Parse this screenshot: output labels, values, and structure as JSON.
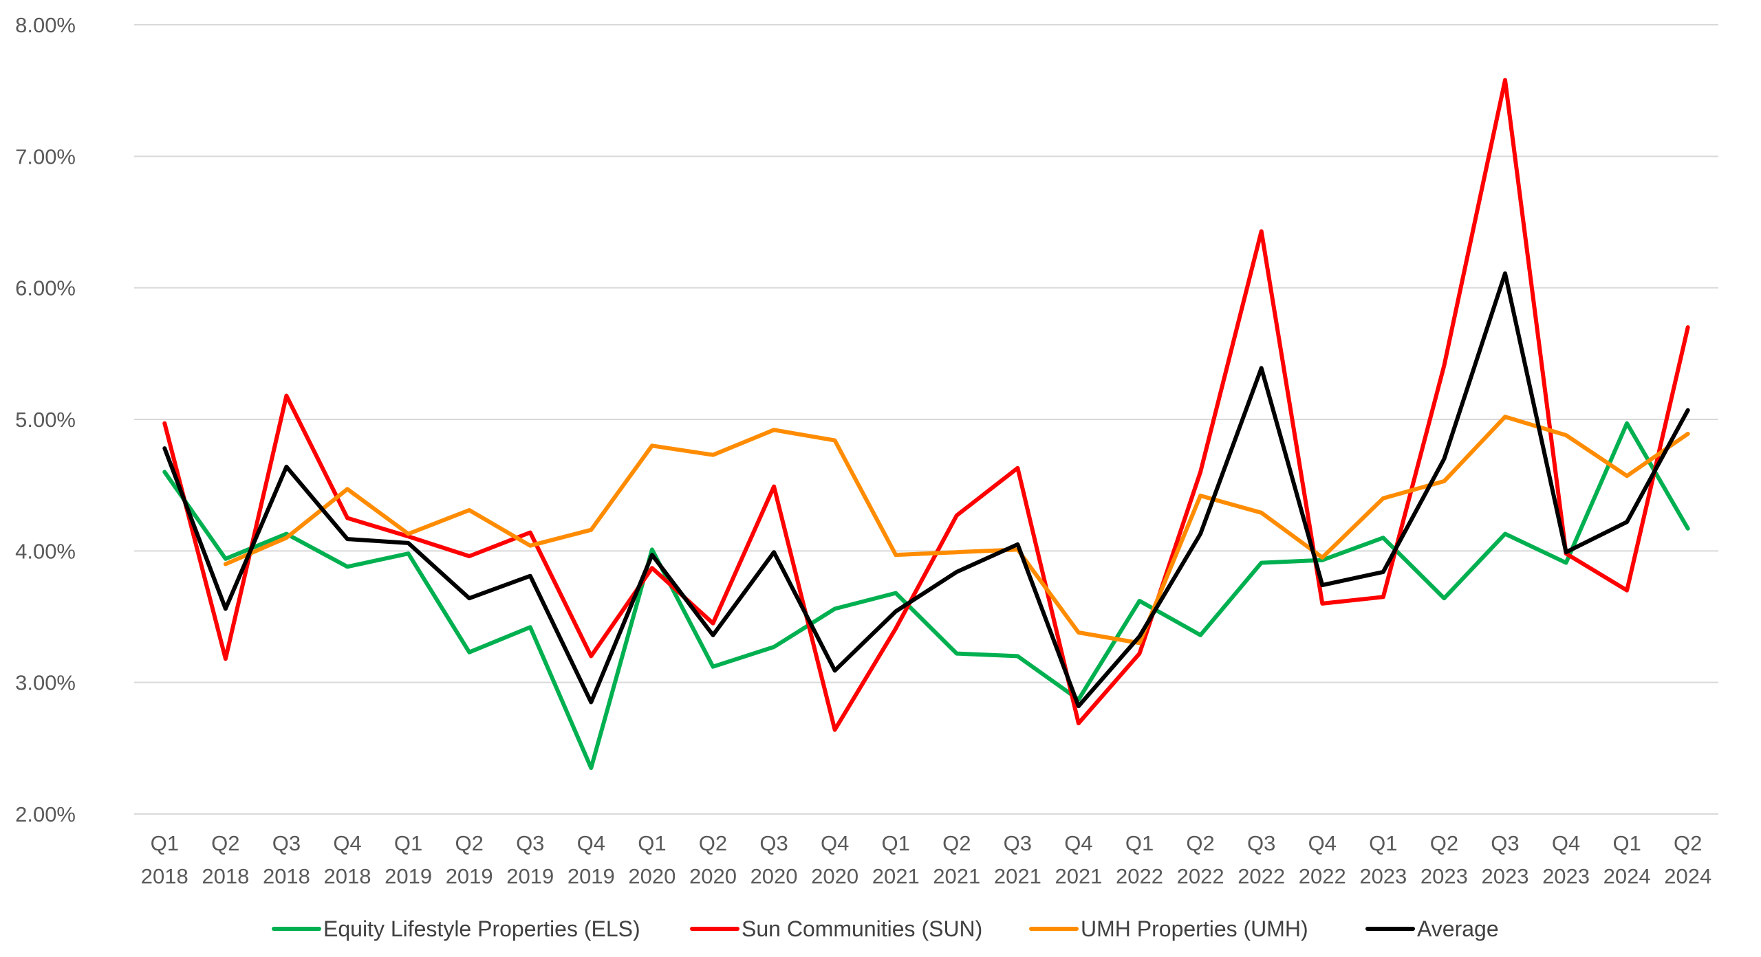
{
  "chart_data": {
    "type": "line",
    "title": "",
    "xlabel": "",
    "ylabel": "",
    "categories": [
      [
        "Q1",
        "2018"
      ],
      [
        "Q2",
        "2018"
      ],
      [
        "Q3",
        "2018"
      ],
      [
        "Q4",
        "2018"
      ],
      [
        "Q1",
        "2019"
      ],
      [
        "Q2",
        "2019"
      ],
      [
        "Q3",
        "2019"
      ],
      [
        "Q4",
        "2019"
      ],
      [
        "Q1",
        "2020"
      ],
      [
        "Q2",
        "2020"
      ],
      [
        "Q3",
        "2020"
      ],
      [
        "Q4",
        "2020"
      ],
      [
        "Q1",
        "2021"
      ],
      [
        "Q2",
        "2021"
      ],
      [
        "Q3",
        "2021"
      ],
      [
        "Q4",
        "2021"
      ],
      [
        "Q1",
        "2022"
      ],
      [
        "Q2",
        "2022"
      ],
      [
        "Q3",
        "2022"
      ],
      [
        "Q4",
        "2022"
      ],
      [
        "Q1",
        "2023"
      ],
      [
        "Q2",
        "2023"
      ],
      [
        "Q3",
        "2023"
      ],
      [
        "Q4",
        "2023"
      ],
      [
        "Q1",
        "2024"
      ],
      [
        "Q2",
        "2024"
      ]
    ],
    "ylim": [
      0.02,
      0.08
    ],
    "yticks": [
      "2.00%",
      "3.00%",
      "4.00%",
      "5.00%",
      "6.00%",
      "7.00%",
      "8.00%"
    ],
    "grid": true,
    "legend_position": "bottom",
    "series": [
      {
        "name": "Equity Lifestyle Properties (ELS)",
        "color": "#00b050",
        "values": [
          0.046,
          0.0394,
          0.0413,
          0.0388,
          0.0398,
          0.0323,
          0.0342,
          0.0235,
          0.0401,
          0.0312,
          0.0327,
          0.0356,
          0.0368,
          0.0322,
          0.032,
          0.0287,
          0.0362,
          0.0336,
          0.0391,
          0.0393,
          0.041,
          0.0364,
          0.0413,
          0.0391,
          0.0497,
          0.0417
        ]
      },
      {
        "name": "Sun Communities (SUN)",
        "color": "#ff0000",
        "values": [
          0.0497,
          0.0318,
          0.0518,
          0.0425,
          0.0411,
          0.0396,
          0.0414,
          0.032,
          0.0387,
          0.0345,
          0.0449,
          0.0264,
          0.0341,
          0.0427,
          0.0463,
          0.0269,
          0.0322,
          0.046,
          0.0643,
          0.036,
          0.0365,
          0.0541,
          0.0758,
          0.0398,
          0.037,
          0.057
        ]
      },
      {
        "name": "UMH Properties (UMH)",
        "color": "#ff8c00",
        "values": [
          null,
          0.039,
          0.041,
          0.0447,
          0.0413,
          0.0431,
          0.0404,
          0.0416,
          0.048,
          0.0473,
          0.0492,
          0.0484,
          0.0397,
          0.0399,
          0.0401,
          0.0338,
          0.033,
          0.0442,
          0.0429,
          0.0395,
          0.044,
          0.0453,
          0.0502,
          0.0488,
          0.0457,
          0.0489
        ]
      },
      {
        "name": "Average",
        "color": "#000000",
        "values": [
          0.0478,
          0.0356,
          0.0464,
          0.0409,
          0.0406,
          0.0364,
          0.0381,
          0.0285,
          0.0397,
          0.0336,
          0.0399,
          0.0309,
          0.0354,
          0.0384,
          0.0405,
          0.0282,
          0.0335,
          0.0413,
          0.0539,
          0.0374,
          0.0384,
          0.047,
          0.0611,
          0.0399,
          0.0422,
          0.0507
        ]
      }
    ]
  }
}
